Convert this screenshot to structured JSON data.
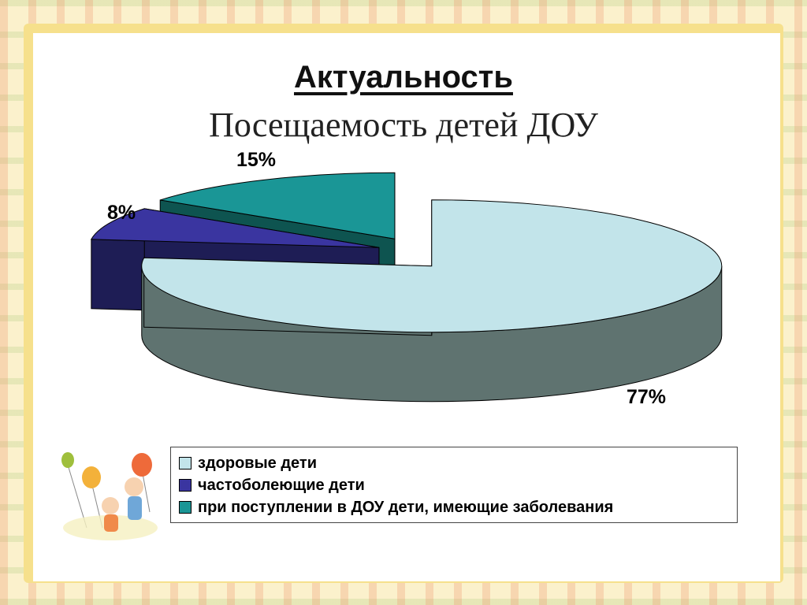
{
  "slide": {
    "title": "Актуальность",
    "subtitle": "Посещаемость детей ДОУ"
  },
  "chart_data": {
    "type": "pie",
    "three_d": true,
    "exploded": true,
    "legend_position": "bottom",
    "slices": [
      {
        "name": "здоровые дети",
        "value": 77,
        "label": "77%",
        "color": "#c2e4ea",
        "side_color": "#5f7370"
      },
      {
        "name": "частоболеющие дети",
        "value": 8,
        "label": "8%",
        "color": "#3a35a0",
        "side_color": "#1e1d55"
      },
      {
        "name": "при поступлении в ДОУ дети, имеющие заболевания",
        "value": 15,
        "label": "15%",
        "color": "#1a9696",
        "side_color": "#0e5450"
      }
    ]
  },
  "decoration": {
    "illustration": "kids-with-balloons-icon",
    "border": "floral-border"
  }
}
